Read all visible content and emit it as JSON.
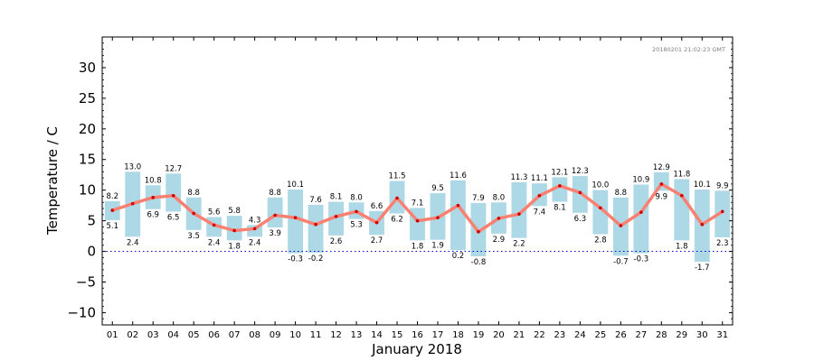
{
  "chart_data": {
    "type": "bar",
    "timestamp": "20180201 21:02:23 GMT",
    "xlabel": "January 2018",
    "ylabel": "Temperature / C",
    "ylim": [
      -12,
      35
    ],
    "yticks": [
      -10,
      -5,
      0,
      5,
      10,
      15,
      20,
      25,
      30
    ],
    "zero_line": true,
    "grid": false,
    "categories": [
      "01",
      "02",
      "03",
      "04",
      "05",
      "06",
      "07",
      "08",
      "09",
      "10",
      "11",
      "12",
      "13",
      "14",
      "15",
      "16",
      "17",
      "18",
      "19",
      "20",
      "21",
      "22",
      "23",
      "24",
      "25",
      "26",
      "27",
      "28",
      "29",
      "30",
      "31"
    ],
    "max": [
      8.2,
      13.0,
      10.8,
      12.7,
      8.8,
      5.6,
      5.8,
      4.3,
      8.8,
      10.1,
      7.6,
      8.1,
      8.0,
      6.6,
      11.5,
      7.1,
      9.5,
      11.6,
      7.9,
      8.0,
      11.3,
      11.1,
      12.1,
      12.3,
      10.0,
      8.8,
      10.9,
      12.9,
      11.8,
      10.1,
      9.9
    ],
    "min": [
      5.1,
      2.4,
      6.9,
      6.5,
      3.5,
      2.4,
      1.8,
      2.4,
      3.9,
      -0.3,
      -0.2,
      2.6,
      5.3,
      2.7,
      6.2,
      1.8,
      1.9,
      0.2,
      -0.8,
      2.9,
      2.2,
      7.4,
      8.1,
      6.3,
      2.8,
      -0.7,
      -0.3,
      9.9,
      1.8,
      -1.7,
      2.3
    ],
    "mean": [
      6.7,
      7.8,
      8.8,
      9.1,
      6.2,
      4.3,
      3.4,
      3.7,
      5.9,
      5.5,
      4.4,
      5.7,
      6.5,
      4.7,
      8.7,
      5.0,
      5.5,
      7.5,
      3.2,
      5.4,
      6.1,
      9.1,
      10.7,
      9.6,
      7.1,
      4.2,
      6.4,
      11.0,
      9.1,
      4.4,
      6.5
    ],
    "colors": {
      "range_bar": "#add8e6",
      "mean_line": "#fa8072",
      "mean_point": "#cc0000",
      "zero_line": "#0000cc",
      "timestamp": "#808080"
    }
  }
}
